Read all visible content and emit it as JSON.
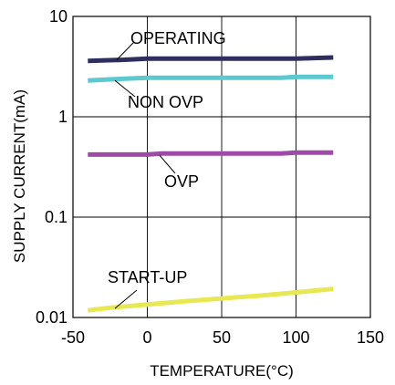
{
  "chart_data": {
    "type": "line",
    "xlabel": "TEMPERATURE(°C)",
    "ylabel": "SUPPLY CURRENT(mA)",
    "x_scale": "linear",
    "y_scale": "log",
    "xlim": [
      -50,
      150
    ],
    "ylim": [
      0.01,
      10
    ],
    "x_ticks": [
      -50,
      0,
      50,
      100,
      150
    ],
    "y_ticks": [
      0.01,
      0.1,
      1,
      10
    ],
    "x_tick_labels": [
      "-50",
      "0",
      "50",
      "100",
      "150"
    ],
    "y_tick_labels": [
      "0.01",
      "0.1",
      "1",
      "10"
    ],
    "grid": true,
    "series": [
      {
        "name": "OPERATING",
        "color": "#2e2f5e",
        "x": [
          -40,
          -15,
          0,
          25,
          50,
          75,
          100,
          125
        ],
        "y": [
          3.6,
          3.7,
          3.8,
          3.8,
          3.8,
          3.8,
          3.8,
          3.9
        ]
      },
      {
        "name": "NON OVP",
        "color": "#5cc8cf",
        "x": [
          -40,
          -15,
          0,
          25,
          50,
          75,
          90,
          100,
          125
        ],
        "y": [
          2.3,
          2.4,
          2.45,
          2.45,
          2.45,
          2.45,
          2.45,
          2.5,
          2.5
        ]
      },
      {
        "name": "OVP",
        "color": "#a04aa8",
        "x": [
          -40,
          0,
          10,
          50,
          90,
          100,
          125
        ],
        "y": [
          0.42,
          0.42,
          0.43,
          0.43,
          0.43,
          0.44,
          0.44
        ]
      },
      {
        "name": "START-UP",
        "color": "#e8e852",
        "x": [
          -40,
          -25,
          0,
          25,
          50,
          75,
          100,
          125
        ],
        "y": [
          0.0118,
          0.0125,
          0.0135,
          0.0145,
          0.0155,
          0.0165,
          0.0178,
          0.0193
        ]
      }
    ],
    "annotations": [
      {
        "text": "OPERATING",
        "series": "OPERATING"
      },
      {
        "text": "NON OVP",
        "series": "NON OVP"
      },
      {
        "text": "OVP",
        "series": "OVP"
      },
      {
        "text": "START-UP",
        "series": "START-UP"
      }
    ]
  }
}
